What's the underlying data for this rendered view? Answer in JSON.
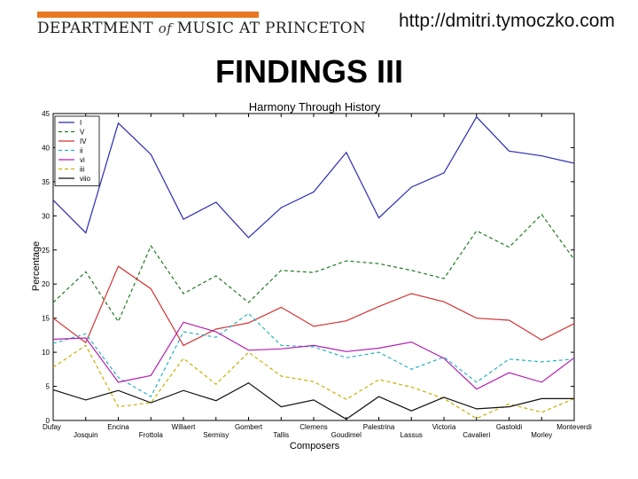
{
  "header": {
    "logo_text_left": "DEPARTMENT",
    "logo_text_of": "of",
    "logo_text_right": "MUSIC AT PRINCETON",
    "url": "http://dmitri.tymoczko.com",
    "slide_title": "FINDINGS III",
    "brand_color": "#e87722"
  },
  "chart_data": {
    "type": "line",
    "title": "Harmony Through History",
    "xlabel": "Composers",
    "ylabel": "Percentage",
    "ylim": [
      0,
      45
    ],
    "yticks": [
      0,
      5,
      10,
      15,
      20,
      25,
      30,
      35,
      40,
      45
    ],
    "legend_position": "top-left",
    "grid": false,
    "categories": [
      "Dufay",
      "Josquin",
      "Encina",
      "Frottola",
      "Willaert",
      "Sermisy",
      "Gombert",
      "Tallis",
      "Clemens",
      "Goudimel",
      "Palestrina",
      "Lassus",
      "Victoria",
      "Cavalieri",
      "Gastoldi",
      "Morley",
      "Monteverdi"
    ],
    "series": [
      {
        "name": "I",
        "color": "#2b2bb5",
        "dash": "solid",
        "values": [
          32.3,
          27.5,
          43.6,
          39.0,
          29.5,
          32.0,
          26.8,
          31.2,
          33.5,
          39.3,
          29.7,
          34.2,
          36.3,
          44.5,
          39.5,
          38.8,
          37.7
        ]
      },
      {
        "name": "V",
        "color": "#1f7a1f",
        "dash": "dashed",
        "values": [
          17.3,
          21.8,
          14.5,
          25.6,
          18.6,
          21.2,
          17.3,
          22.0,
          21.7,
          23.4,
          23.0,
          22.0,
          20.8,
          27.8,
          25.4,
          30.2,
          23.6
        ]
      },
      {
        "name": "IV",
        "color": "#d43333",
        "dash": "solid",
        "values": [
          15.0,
          11.4,
          22.6,
          19.3,
          11.0,
          13.4,
          14.3,
          16.6,
          13.8,
          14.6,
          16.7,
          18.6,
          17.4,
          15.0,
          14.7,
          11.8,
          14.2
        ]
      },
      {
        "name": "ii",
        "color": "#25b4c4",
        "dash": "dashed",
        "values": [
          11.3,
          12.7,
          6.3,
          3.5,
          13.0,
          12.2,
          15.7,
          11.0,
          10.8,
          9.2,
          10.0,
          7.5,
          9.3,
          5.6,
          9.0,
          8.6,
          9.0
        ]
      },
      {
        "name": "vi",
        "color": "#b320b3",
        "dash": "solid",
        "values": [
          11.9,
          12.1,
          5.6,
          6.6,
          14.4,
          13.0,
          10.3,
          10.5,
          11.0,
          10.1,
          10.6,
          11.5,
          9.1,
          4.6,
          7.0,
          5.6,
          9.2
        ]
      },
      {
        "name": "iii",
        "color": "#c9b000",
        "dash": "dashed",
        "values": [
          7.8,
          11.0,
          2.0,
          2.6,
          9.1,
          5.3,
          10.0,
          6.5,
          5.7,
          3.1,
          6.0,
          4.9,
          3.2,
          0.3,
          2.4,
          1.2,
          3.2
        ]
      },
      {
        "name": "viio",
        "color": "#111111",
        "dash": "solid",
        "values": [
          4.5,
          3.0,
          4.4,
          2.6,
          4.4,
          2.9,
          5.5,
          2.0,
          3.0,
          0.2,
          3.5,
          1.4,
          3.4,
          1.7,
          2.0,
          3.2,
          3.2
        ]
      }
    ]
  }
}
